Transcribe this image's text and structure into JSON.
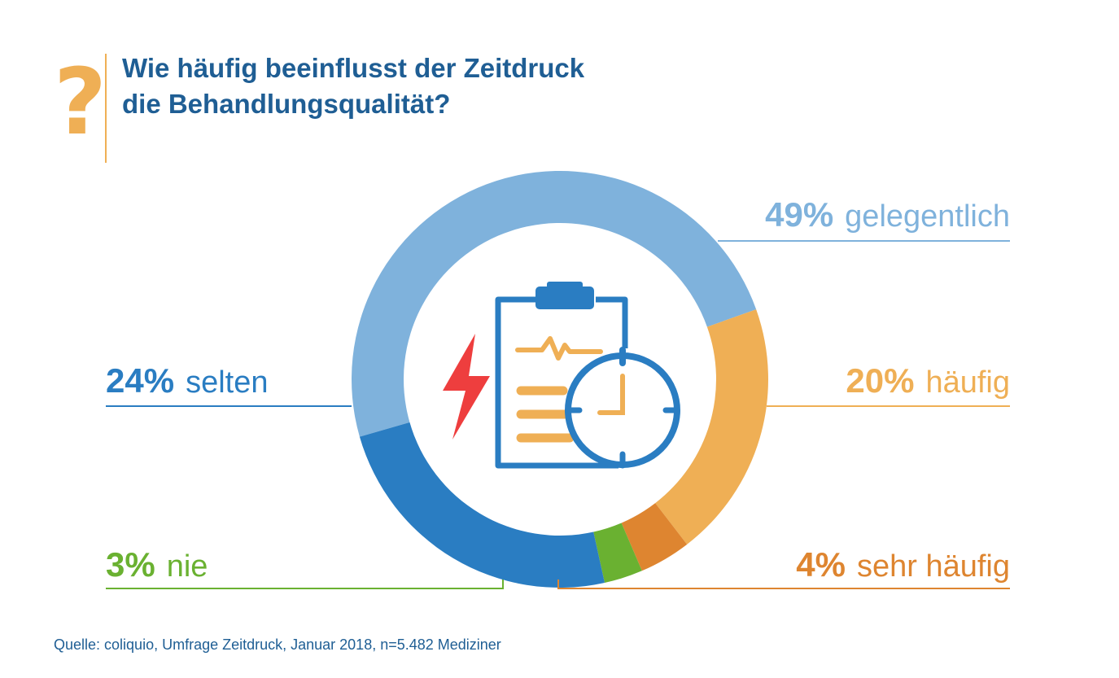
{
  "question_mark": "?",
  "title": {
    "line1": "Wie häufig beeinflusst der Zeitdruck",
    "line2": "die Behandlungsqualität?"
  },
  "source": "Quelle: coliquio, Umfrage Zeitdruck, Januar 2018, n=5.482 Mediziner",
  "colors": {
    "title": "#1f5e94",
    "accent": "#efaf55",
    "gelegentlich": "#7fb2dc",
    "haeufig": "#efaf55",
    "sehr_haeufig": "#de8530",
    "nie": "#6ab131",
    "selten": "#2a7dc2",
    "icon_blue": "#2a7dc2",
    "icon_orange": "#efaf55",
    "lightning": "#ee3e3e"
  },
  "center_icon": {
    "clipboard": "clipboard-icon",
    "stopwatch": "stopwatch-icon",
    "lightning": "lightning-icon",
    "heartbeat": "heartbeat-icon"
  },
  "chart_data": {
    "type": "pie",
    "variant": "donut",
    "title": "Wie häufig beeinflusst der Zeitdruck die Behandlungsqualität?",
    "slices": [
      {
        "label": "gelegentlich",
        "pct_label": "49%",
        "value": 49,
        "color": "#7fb2dc",
        "side": "right"
      },
      {
        "label": "häufig",
        "pct_label": "20%",
        "value": 20,
        "color": "#efaf55",
        "side": "right"
      },
      {
        "label": "sehr häufig",
        "pct_label": "4%",
        "value": 4,
        "color": "#de8530",
        "side": "right"
      },
      {
        "label": "nie",
        "pct_label": "3%",
        "value": 3,
        "color": "#6ab131",
        "side": "left"
      },
      {
        "label": "selten",
        "pct_label": "24%",
        "value": 24,
        "color": "#2a7dc2",
        "side": "left"
      }
    ]
  }
}
